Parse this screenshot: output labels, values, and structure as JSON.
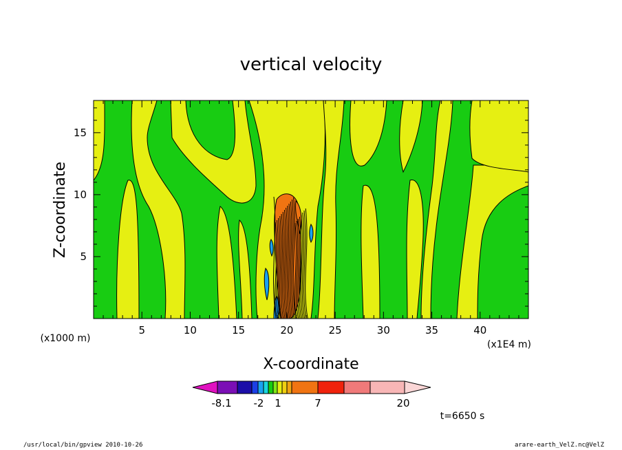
{
  "chart_data": {
    "type": "heatmap",
    "title": "vertical velocity",
    "xlabel": "X-coordinate",
    "ylabel": "Z-coordinate",
    "x_unit_left": "(x1000 m)",
    "x_unit_right": "(x1E4 m)",
    "xlim": [
      0,
      45
    ],
    "ylim": [
      0,
      17.6
    ],
    "x_ticks": [
      "5",
      "10",
      "15",
      "20",
      "25",
      "30",
      "35",
      "40"
    ],
    "x_tick_values": [
      5,
      10,
      15,
      20,
      25,
      30,
      35,
      40
    ],
    "y_ticks": [
      "5",
      "10",
      "15"
    ],
    "y_tick_values": [
      5,
      10,
      15
    ],
    "time_label": "t=6650 s",
    "colorbar": {
      "labels": [
        "-8.1",
        "-2",
        "1",
        "7",
        "20"
      ],
      "colors": [
        "#e011c0",
        "#7b0fb5",
        "#1c0ea8",
        "#1b3fe6",
        "#1aa2f0",
        "#19d6dc",
        "#18cc12",
        "#7fe817",
        "#e6ef12",
        "#f0d012",
        "#f0a512",
        "#f07412",
        "#f0220c",
        "#f07a7a",
        "#f8b6b6",
        "#fad6d6"
      ]
    },
    "regions": {
      "background": "#18cc12",
      "positive": "#e6ef12",
      "strong_up": "#f07412",
      "strong_down": "#1aa2f0"
    }
  },
  "footer": {
    "left": "/usr/local/bin/gpview  2010-10-26",
    "right": "arare-earth_VelZ.nc@VelZ"
  }
}
